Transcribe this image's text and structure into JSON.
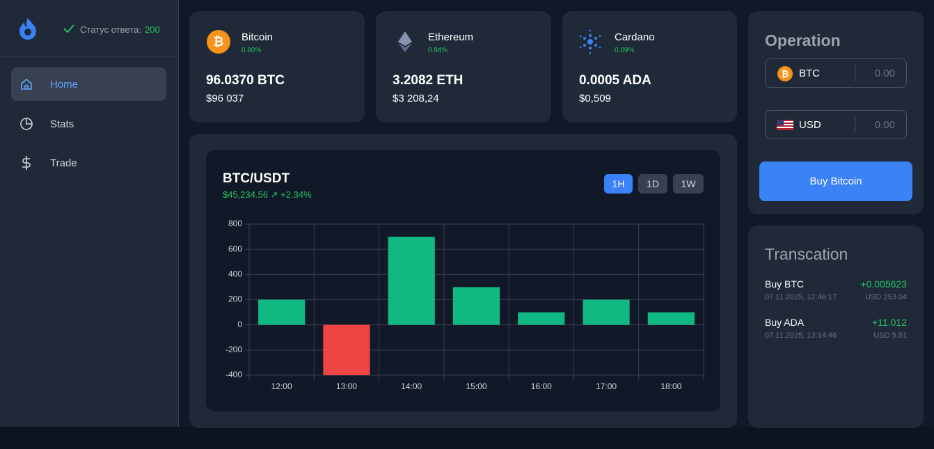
{
  "sidebar": {
    "status_label": "Статус ответа:",
    "status_code": "200",
    "nav": [
      "Home",
      "Stats",
      "Trade"
    ]
  },
  "cards": [
    {
      "name": "Bitcoin",
      "change": "0.80%",
      "amount": "96.0370 BTC",
      "usd": "$96 037"
    },
    {
      "name": "Ethereum",
      "change": "0.94%",
      "amount": "3.2082 ETH",
      "usd": "$3 208,24"
    },
    {
      "name": "Cardano",
      "change": "0.09%",
      "amount": "0.0005 ADA",
      "usd": "$0,509"
    }
  ],
  "chart_panel": {
    "pair": "BTC/USDT",
    "price": "$45,234.56 ↗ +2.34%",
    "ranges": [
      "1H",
      "1D",
      "1W"
    ]
  },
  "chart_data": {
    "type": "bar",
    "categories": [
      "12:00",
      "13:00",
      "14:00",
      "15:00",
      "16:00",
      "17:00",
      "18:00"
    ],
    "values": [
      200,
      -400,
      700,
      300,
      100,
      200,
      100
    ],
    "color": "#10b981",
    "negative_color": "#ef4444",
    "ylim": [
      -400,
      800
    ],
    "yticks": [
      -400,
      -200,
      0,
      200,
      400,
      600,
      800
    ],
    "grid": true
  },
  "operation": {
    "title": "Operation",
    "rows": [
      {
        "currency": "BTC",
        "placeholder": "0.00"
      },
      {
        "currency": "USD",
        "placeholder": "0.00"
      }
    ],
    "button": "Buy Bitcoin"
  },
  "transactions": {
    "title": "Transcation",
    "items": [
      {
        "title": "Buy BTC",
        "date": "07.11.2025, 12:46:17",
        "amount": "+0.005623",
        "usd": "USD 253.04"
      },
      {
        "title": "Buy ADA",
        "date": "07.11.2025, 13:14:46",
        "amount": "+11.012",
        "usd": "USD 5.51"
      }
    ]
  }
}
